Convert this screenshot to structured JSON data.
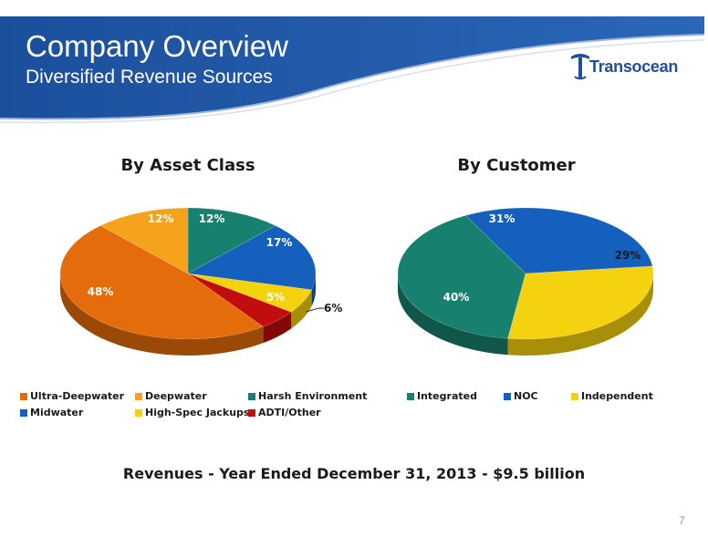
{
  "header": {
    "title": "Company Overview",
    "subtitle": "Diversified Revenue Sources",
    "logo_text": "Transocean",
    "band_color": "#1b4f9c"
  },
  "chart_data": [
    {
      "type": "pie",
      "title": "By Asset Class",
      "series": [
        {
          "name": "Harsh Environment",
          "value": 12,
          "label": "12%",
          "color": "#17806f"
        },
        {
          "name": "Midwater",
          "value": 17,
          "label": "17%",
          "color": "#1560bd"
        },
        {
          "name": "High-Spec Jackups",
          "value": 6,
          "label": "6%",
          "color": "#f5d20f"
        },
        {
          "name": "ADTI/Other",
          "value": 5,
          "label": "5%",
          "color": "#c00d0d"
        },
        {
          "name": "Ultra-Deepwater",
          "value": 48,
          "label": "48%",
          "color": "#e46c0a"
        },
        {
          "name": "Deepwater",
          "value": 12,
          "label": "12%",
          "color": "#f5a31c"
        }
      ],
      "legend": [
        {
          "label": "Ultra-Deepwater",
          "color": "#e46c0a"
        },
        {
          "label": "Deepwater",
          "color": "#f5a31c"
        },
        {
          "label": "Harsh Environment",
          "color": "#17806f"
        },
        {
          "label": "Midwater",
          "color": "#1560bd"
        },
        {
          "label": "High-Spec Jackups",
          "color": "#f5d20f"
        },
        {
          "label": "ADTI/Other",
          "color": "#c00d0d"
        }
      ]
    },
    {
      "type": "pie",
      "title": "By Customer",
      "series": [
        {
          "name": "NOC",
          "value": 31,
          "label": "31%",
          "color": "#1560bd"
        },
        {
          "name": "Independent",
          "value": 29,
          "label": "29%",
          "color": "#f5d20f"
        },
        {
          "name": "Integrated",
          "value": 40,
          "label": "40%",
          "color": "#17806f"
        }
      ],
      "legend": [
        {
          "label": "Integrated",
          "color": "#17806f"
        },
        {
          "label": "NOC",
          "color": "#1560bd"
        },
        {
          "label": "Independent",
          "color": "#f5d20f"
        }
      ]
    }
  ],
  "footer": {
    "caption": "Revenues - Year Ended December 31, 2013 - $9.5 billion",
    "page_number": "7"
  }
}
